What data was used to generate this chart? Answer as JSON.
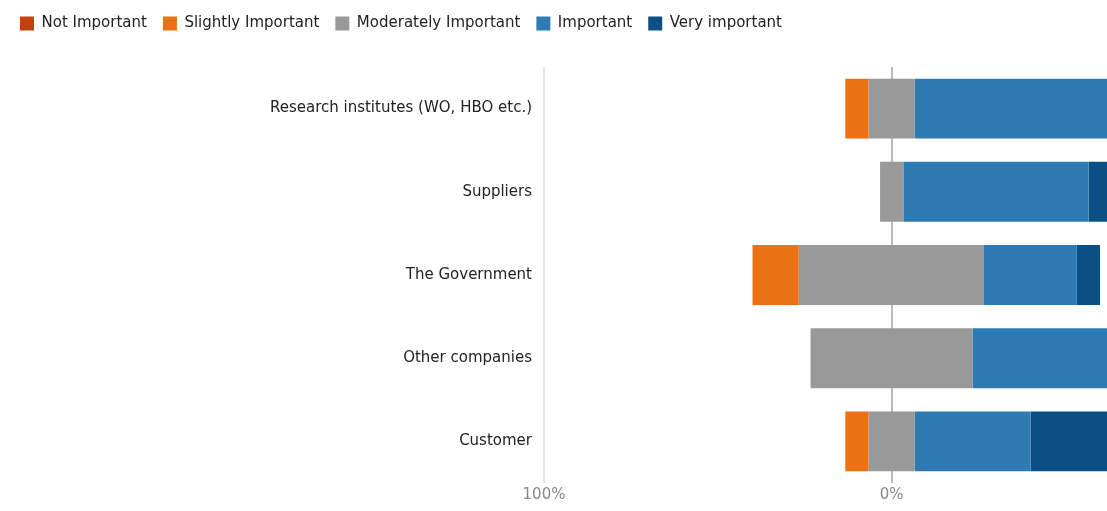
{
  "chart_data": {
    "type": "bar",
    "orientation": "horizontal",
    "categories": [
      "Research institutes (WO, HBO etc.)",
      "Suppliers",
      "The Government",
      "Other companies",
      "Customer"
    ],
    "series": [
      {
        "name": "Not Important",
        "color": "#c0430f",
        "values": [
          null,
          null,
          null,
          null,
          null
        ]
      },
      {
        "name": "Slightly Important",
        "color": "#ec7014",
        "values": [
          6.7,
          null,
          13.3,
          null,
          6.7
        ],
        "base": [
          -13.3,
          null,
          -40.0,
          null,
          -13.3
        ]
      },
      {
        "name": "Moderately Important",
        "color": "#999999",
        "values": [
          13.3,
          6.7,
          53.3,
          46.7,
          13.3
        ],
        "base": [
          -6.6,
          -3.3,
          -26.7,
          -23.3,
          -6.6
        ]
      },
      {
        "name": "Important",
        "color": "#2e7bb4",
        "values": [
          55.3,
          53.3,
          26.7,
          38.6,
          33.3
        ],
        "base": [
          6.7,
          3.4,
          26.6,
          23.4,
          6.7
        ]
      },
      {
        "name": "Very important",
        "color": "#0b4f84",
        "values": [
          null,
          5.3,
          6.7,
          null,
          22.0
        ],
        "base": [
          null,
          56.7,
          53.3,
          null,
          40.0
        ]
      }
    ],
    "xlim": [
      -100,
      62
    ],
    "xticks": [
      {
        "value": -100,
        "label": "100%"
      },
      {
        "value": 0,
        "label": "0%"
      }
    ],
    "grid": "x",
    "legend": "top left"
  }
}
